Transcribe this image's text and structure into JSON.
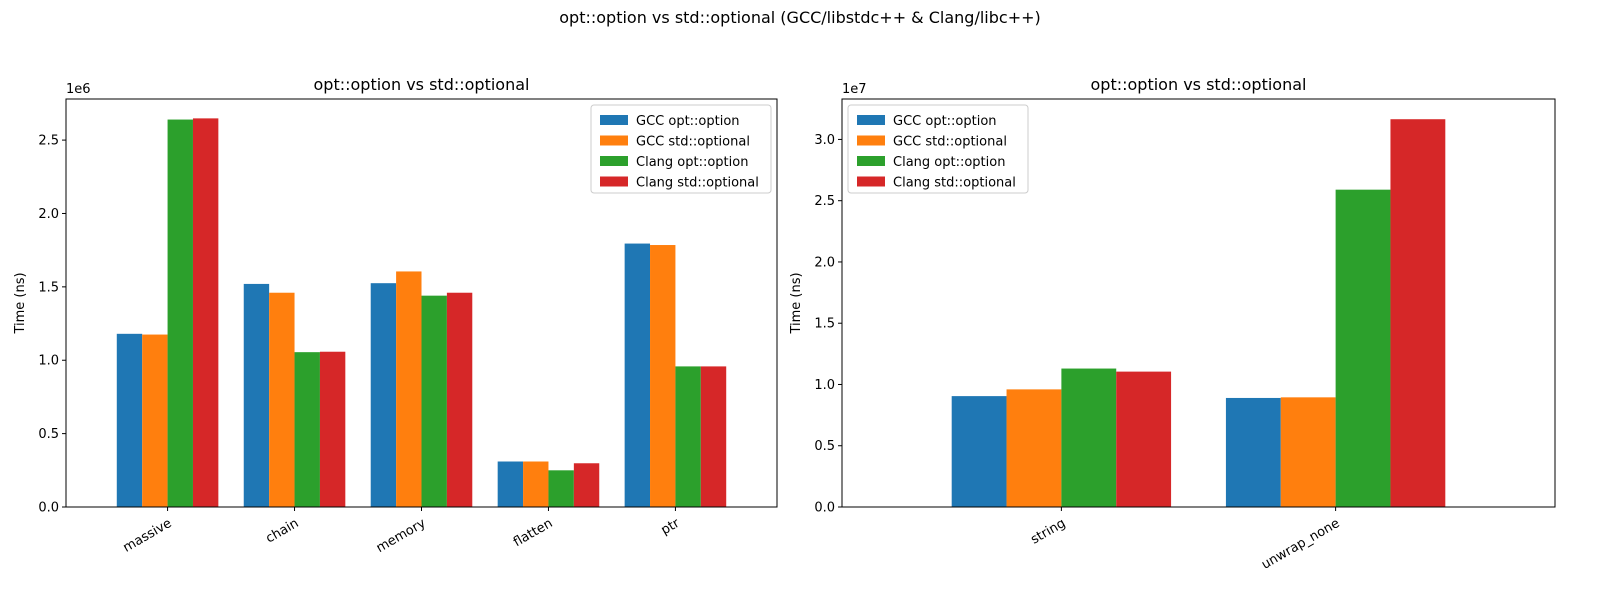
{
  "suptitle": "opt::option vs std::optional (GCC/libstdc++ & Clang/libc++)",
  "chart_data": [
    {
      "type": "bar",
      "title": "opt::option vs std::optional",
      "xlabel": "",
      "ylabel": "Time (ns)",
      "offset_text": "1e6",
      "categories": [
        "massive",
        "chain",
        "memory",
        "flatten",
        "ptr"
      ],
      "ylim": [
        0,
        2780000
      ],
      "yticks": [
        0,
        500000,
        1000000,
        1500000,
        2000000,
        2500000
      ],
      "ytick_labels": [
        "0.0",
        "0.5",
        "1.0",
        "1.5",
        "2.0",
        "2.5"
      ],
      "legend_position": "upper-right",
      "grid": false,
      "series": [
        {
          "name": "GCC opt::option",
          "color": "#1f77b4",
          "values": [
            1180000,
            1520000,
            1525000,
            310000,
            1795000
          ]
        },
        {
          "name": "GCC std::optional",
          "color": "#ff7f0e",
          "values": [
            1175000,
            1460000,
            1605000,
            310000,
            1785000
          ]
        },
        {
          "name": "Clang opt::option",
          "color": "#2ca02c",
          "values": [
            2640000,
            1055000,
            1440000,
            250000,
            958000
          ]
        },
        {
          "name": "Clang std::optional",
          "color": "#d62728",
          "values": [
            2648000,
            1058000,
            1460000,
            298000,
            958000
          ]
        }
      ]
    },
    {
      "type": "bar",
      "title": "opt::option vs std::optional",
      "xlabel": "",
      "ylabel": "Time (ns)",
      "offset_text": "1e7",
      "categories": [
        "string",
        "unwrap_none"
      ],
      "ylim": [
        0,
        33300000
      ],
      "yticks": [
        0,
        5000000,
        10000000,
        15000000,
        20000000,
        25000000,
        30000000
      ],
      "ytick_labels": [
        "0.0",
        "0.5",
        "1.0",
        "1.5",
        "2.0",
        "2.5",
        "3.0"
      ],
      "legend_position": "upper-left",
      "grid": false,
      "series": [
        {
          "name": "GCC opt::option",
          "color": "#1f77b4",
          "values": [
            9050000,
            8900000
          ]
        },
        {
          "name": "GCC std::optional",
          "color": "#ff7f0e",
          "values": [
            9600000,
            8950000
          ]
        },
        {
          "name": "Clang opt::option",
          "color": "#2ca02c",
          "values": [
            11300000,
            25900000
          ]
        },
        {
          "name": "Clang std::optional",
          "color": "#d62728",
          "values": [
            11050000,
            31650000
          ]
        }
      ]
    }
  ]
}
